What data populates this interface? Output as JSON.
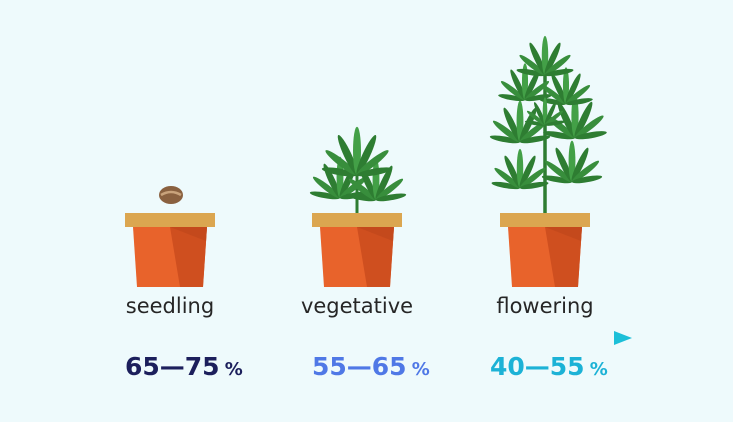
{
  "stages": [
    {
      "label": "seedling",
      "range": "65—75",
      "unit": "%"
    },
    {
      "label": "vegetative",
      "range": "55—65",
      "unit": "%"
    },
    {
      "label": "flowering",
      "range": "40—55",
      "unit": "%"
    }
  ]
}
